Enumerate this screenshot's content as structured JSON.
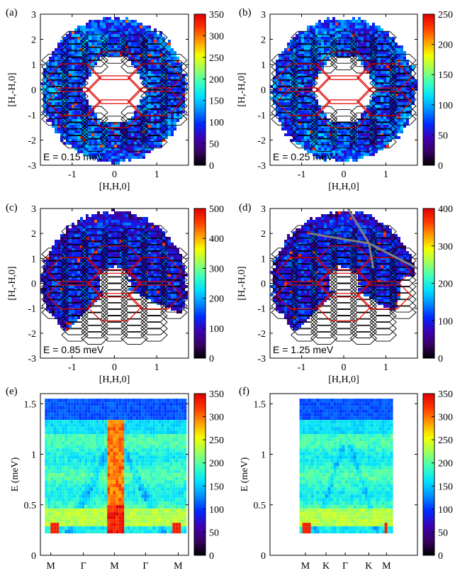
{
  "colormap": [
    "#000000",
    "#3a0065",
    "#3d00b5",
    "#0028ff",
    "#008cff",
    "#00e0ff",
    "#3cffbe",
    "#9cff5e",
    "#f4ff00",
    "#ff9e00",
    "#ff3a00",
    "#e00000"
  ],
  "colors": {
    "bz_inner": "#000000",
    "bz_outer": "#e00000",
    "cut_line": "#808080"
  },
  "chart_data": [
    {
      "id": "a",
      "type": "heatmap",
      "panel_label": "(a)",
      "annotation": "E = 0.15 meV",
      "xlabel": "[H,H,0]",
      "ylabel": "[H,-H,0]",
      "xlim": [
        -1.75,
        1.75
      ],
      "ylim": [
        -3,
        3
      ],
      "xticks": [
        -1,
        0,
        1
      ],
      "yticks": [
        -3,
        -2,
        -1,
        0,
        1,
        2,
        3
      ],
      "coverage": "ring",
      "mask_inner_radius_frac": 0.5,
      "hex_hole": true,
      "colorbar": {
        "min": 0,
        "max": 350,
        "ticks": [
          0,
          50,
          100,
          150,
          200,
          250,
          300,
          350
        ]
      }
    },
    {
      "id": "b",
      "type": "heatmap",
      "panel_label": "(b)",
      "annotation": "E = 0.25 meV",
      "xlabel": "[H,H,0]",
      "ylabel": "[H,-H,0]",
      "xlim": [
        -1.75,
        1.75
      ],
      "ylim": [
        -3,
        3
      ],
      "xticks": [
        -1,
        0,
        1
      ],
      "yticks": [
        -3,
        -2,
        -1,
        0,
        1,
        2,
        3
      ],
      "coverage": "ring",
      "hex_hole": true,
      "colorbar": {
        "min": 0,
        "max": 250,
        "ticks": [
          0,
          50,
          100,
          150,
          200,
          250
        ]
      }
    },
    {
      "id": "c",
      "type": "heatmap",
      "panel_label": "(c)",
      "annotation": "E = 0.85 meV",
      "xlabel": "[H,H,0]",
      "ylabel": "[H,-H,0]",
      "xlim": [
        -1.75,
        1.75
      ],
      "ylim": [
        -3,
        3
      ],
      "xticks": [
        -1,
        0,
        1
      ],
      "yticks": [
        -3,
        -2,
        -1,
        0,
        1,
        2,
        3
      ],
      "coverage": "partial",
      "colorbar": {
        "min": 0,
        "max": 500,
        "ticks": [
          0,
          100,
          200,
          300,
          400,
          500
        ]
      }
    },
    {
      "id": "d",
      "type": "heatmap",
      "panel_label": "(d)",
      "annotation": "E = 1.25 meV",
      "xlabel": "[H,H,0]",
      "ylabel": "[H,-H,0]",
      "xlim": [
        -1.75,
        1.75
      ],
      "ylim": [
        -3,
        3
      ],
      "xticks": [
        -1,
        0,
        1
      ],
      "yticks": [
        -3,
        -2,
        -1,
        0,
        1,
        2,
        3
      ],
      "coverage": "partial",
      "cut_path": true,
      "colorbar": {
        "min": 0,
        "max": 400,
        "ticks": [
          0,
          100,
          200,
          300,
          400
        ]
      }
    },
    {
      "id": "e",
      "type": "heatmap",
      "panel_label": "(e)",
      "xlabel": "",
      "ylabel": "E (meV)",
      "xticklabels": [
        "M",
        "Γ",
        "M",
        "Γ",
        "M"
      ],
      "ylim": [
        0,
        1.6
      ],
      "yticks": [
        0,
        0.5,
        1,
        1.5
      ],
      "energy_range": [
        0.25,
        1.55
      ],
      "colorbar": {
        "min": 0,
        "max": 350,
        "ticks": [
          0,
          50,
          100,
          150,
          200,
          250,
          300,
          350
        ]
      }
    },
    {
      "id": "f",
      "type": "heatmap",
      "panel_label": "(f)",
      "xlabel": "",
      "ylabel": "E (meV)",
      "xticklabels": [
        "M",
        "K",
        "Γ",
        "K",
        "M"
      ],
      "ylim": [
        0,
        1.6
      ],
      "yticks": [
        0,
        0.5,
        1,
        1.5
      ],
      "energy_range": [
        0.25,
        1.55
      ],
      "colorbar": {
        "min": 0,
        "max": 350,
        "ticks": [
          0,
          50,
          100,
          150,
          200,
          250,
          300,
          350
        ]
      }
    }
  ]
}
